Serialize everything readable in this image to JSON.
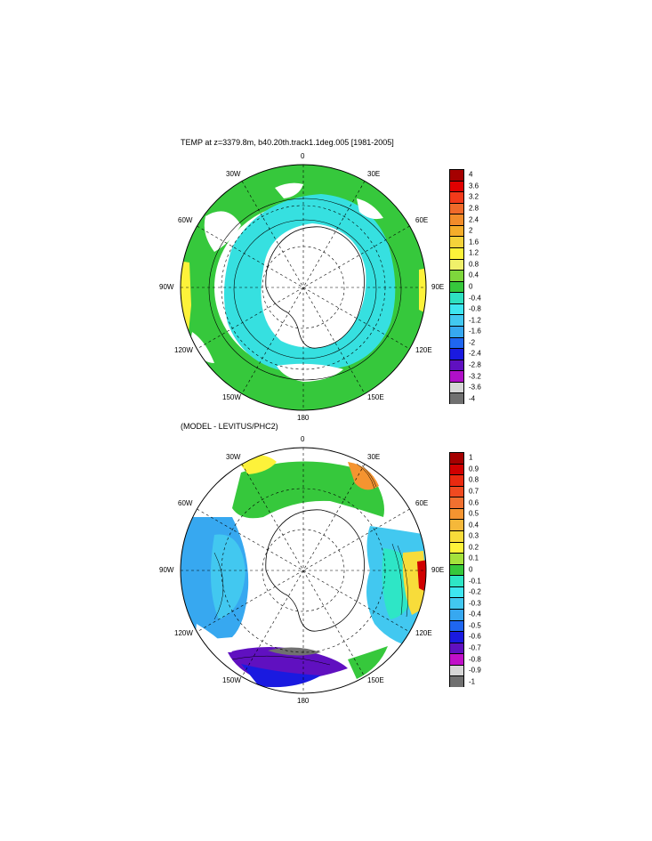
{
  "panel_top": {
    "title": "TEMP at z=3379.8m, b40.20th.track1.1deg.005 [1981-2005]",
    "colorbar": {
      "labels": [
        "4",
        "3.6",
        "3.2",
        "2.8",
        "2.4",
        "2",
        "1.6",
        "1.2",
        "0.8",
        "0.4",
        "0",
        "-0.4",
        "-0.8",
        "-1.2",
        "-1.6",
        "-2",
        "-2.4",
        "-2.8",
        "-3.2",
        "-3.6",
        "-4"
      ],
      "colors": [
        "#a50000",
        "#e00000",
        "#f23a1a",
        "#f06a2a",
        "#f28c2a",
        "#f5ad2a",
        "#f5d23a",
        "#fdf23a",
        "#f0f06a",
        "#7ed63c",
        "#36c83c",
        "#2ee0c0",
        "#3ee6f0",
        "#42c8f0",
        "#37a8f0",
        "#1f66f0",
        "#1a1ae0",
        "#6010c0",
        "#b010c8",
        "#d6d6d6",
        "#707070"
      ]
    },
    "map": {
      "top": "0",
      "bottom": "180",
      "ul": "30W",
      "ur": "30E",
      "ml_up": "60W",
      "mr_up": "60E",
      "left": "90W",
      "right": "90E",
      "ml_low": "120W",
      "mr_low": "120E",
      "ll": "150W",
      "lr": "150E"
    }
  },
  "panel_bottom": {
    "title": "(MODEL - LEVITUS/PHC2)",
    "colorbar": {
      "labels": [
        "1",
        "0.9",
        "0.8",
        "0.7",
        "0.6",
        "0.5",
        "0.4",
        "0.3",
        "0.2",
        "0.1",
        "0",
        "-0.1",
        "-0.2",
        "-0.3",
        "-0.4",
        "-0.5",
        "-0.6",
        "-0.7",
        "-0.8",
        "-0.9",
        "-1"
      ],
      "colors": [
        "#a50000",
        "#d00000",
        "#ea2a10",
        "#f04a20",
        "#f07030",
        "#f59430",
        "#f5b83a",
        "#f8dc3a",
        "#fdf23a",
        "#a4e23c",
        "#36c83c",
        "#2ee6c6",
        "#3ee6f0",
        "#42c8f0",
        "#37a8f0",
        "#1f66f0",
        "#1a1ae0",
        "#6010c0",
        "#c010c8",
        "#d6d6d6",
        "#707070"
      ]
    },
    "map": {
      "top": "0",
      "bottom": "180",
      "ul": "30W",
      "ur": "30E",
      "ml_up": "60W",
      "mr_up": "60E",
      "left": "90W",
      "right": "90E",
      "ml_low": "120W",
      "mr_low": "120E",
      "ll": "150W",
      "lr": "150E"
    }
  },
  "fill_colors": {
    "ocean_cyan": "#36e0e0",
    "ocean_green": "#36c83c",
    "ocean_yellow": "#fdf23a",
    "ocean_blue": "#37a8f0",
    "ocean_teal": "#2ee6c6"
  }
}
